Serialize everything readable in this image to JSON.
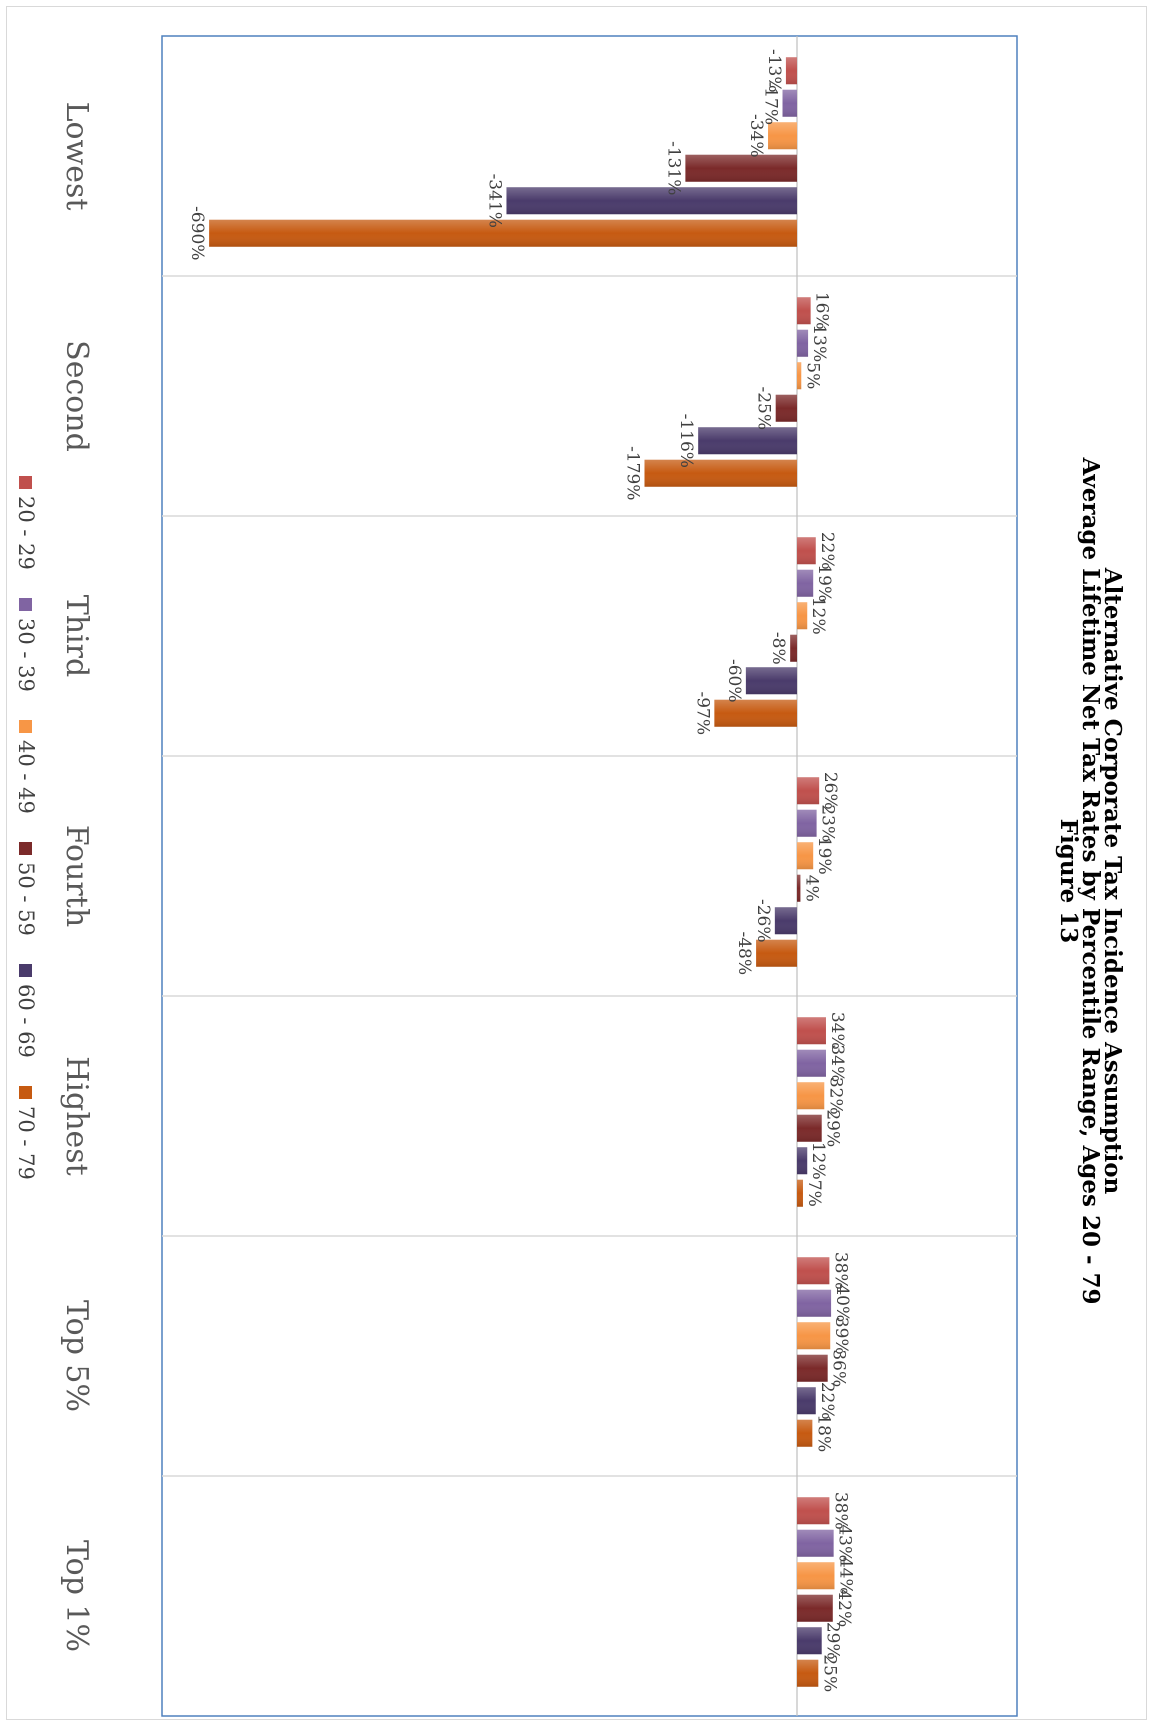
{
  "chart_data": {
    "type": "bar",
    "title": "Figure 13",
    "subtitle_line1": "Average Lifetime Net Tax Rates by Percentile Range, Ages 20 - 79",
    "subtitle_line2": "Alternative Corporate Tax Incidence Assumption",
    "categories": [
      "Lowest",
      "Second",
      "Third",
      "Fourth",
      "Highest",
      "Top 5%",
      "Top 1%"
    ],
    "series": [
      {
        "name": "20 - 29",
        "values": [
          -13,
          16,
          22,
          26,
          34,
          38,
          38
        ]
      },
      {
        "name": "30 - 39",
        "values": [
          -17,
          13,
          19,
          23,
          34,
          40,
          43
        ]
      },
      {
        "name": "40 - 49",
        "values": [
          -34,
          5,
          12,
          19,
          32,
          39,
          44
        ]
      },
      {
        "name": "50 - 59",
        "values": [
          -131,
          -25,
          -8,
          4,
          29,
          36,
          42
        ]
      },
      {
        "name": "60 - 69",
        "values": [
          -341,
          -116,
          -60,
          -26,
          12,
          22,
          29
        ]
      },
      {
        "name": "70 - 79",
        "values": [
          -690,
          -179,
          -97,
          -48,
          7,
          18,
          25
        ]
      }
    ],
    "value_format": "percent",
    "ylim": [
      -700,
      100
    ],
    "grid": true,
    "legend_position": "bottom",
    "colors": [
      "#c0504d",
      "#8064a2",
      "#f79646",
      "#7b2a2a",
      "#4a3b6b",
      "#c65a11"
    ]
  }
}
